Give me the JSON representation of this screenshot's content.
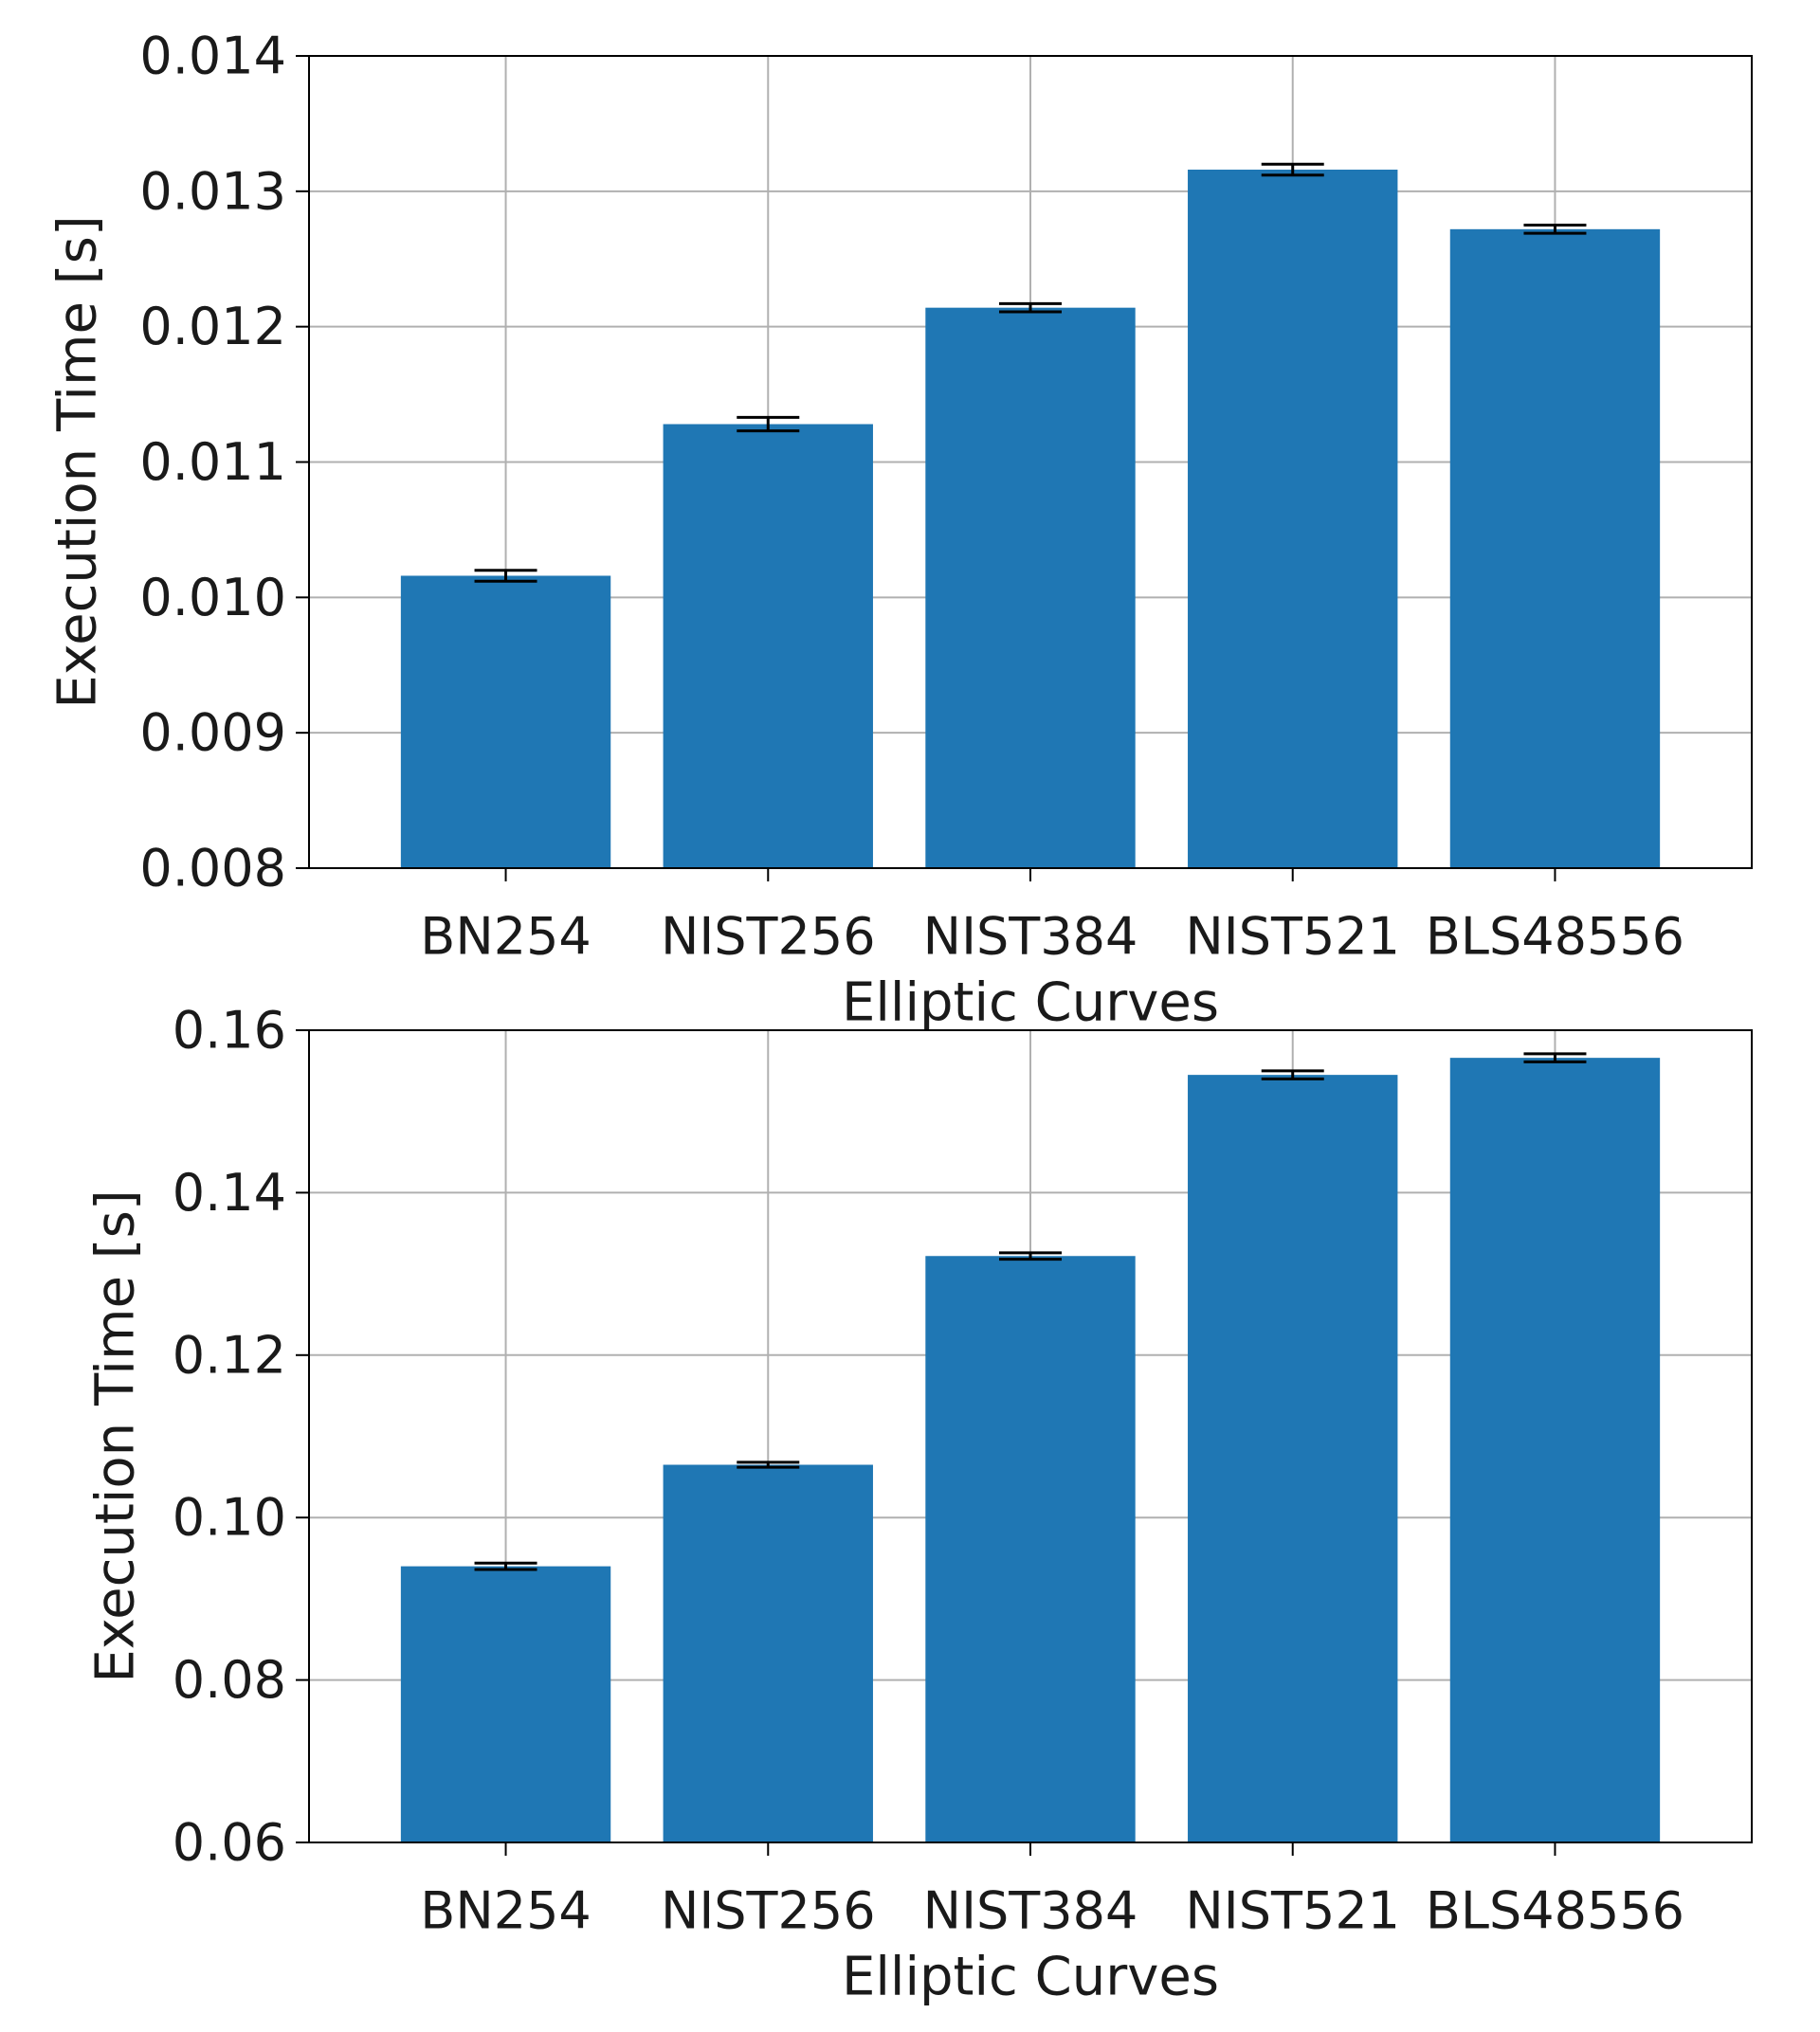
{
  "chart_data": [
    {
      "type": "bar",
      "title": "",
      "xlabel": "Elliptic Curves",
      "ylabel": "Execution Time [s]",
      "categories": [
        "BN254",
        "NIST256",
        "NIST384",
        "NIST521",
        "BLS48556"
      ],
      "values": [
        0.01016,
        0.01128,
        0.01214,
        0.01316,
        0.01272
      ],
      "errors": [
        4e-05,
        5e-05,
        3e-05,
        4e-05,
        3e-05
      ],
      "ylim": [
        0.008,
        0.014
      ],
      "yticks": [
        "0.008",
        "0.009",
        "0.010",
        "0.011",
        "0.012",
        "0.013",
        "0.014"
      ],
      "grid": true,
      "bar_color": "#1f77b4",
      "error_color": "#000000"
    },
    {
      "type": "bar",
      "title": "",
      "xlabel": "Elliptic Curves",
      "ylabel": "Execution Time [s]",
      "categories": [
        "BN254",
        "NIST256",
        "NIST384",
        "NIST521",
        "BLS48556"
      ],
      "values": [
        0.094,
        0.1065,
        0.1322,
        0.1545,
        0.1566
      ],
      "errors": [
        0.0004,
        0.0003,
        0.0004,
        0.0005,
        0.0005
      ],
      "ylim": [
        0.06,
        0.16
      ],
      "yticks": [
        "0.06",
        "0.08",
        "0.10",
        "0.12",
        "0.14",
        "0.16"
      ],
      "grid": true,
      "bar_color": "#1f77b4",
      "error_color": "#000000"
    }
  ]
}
